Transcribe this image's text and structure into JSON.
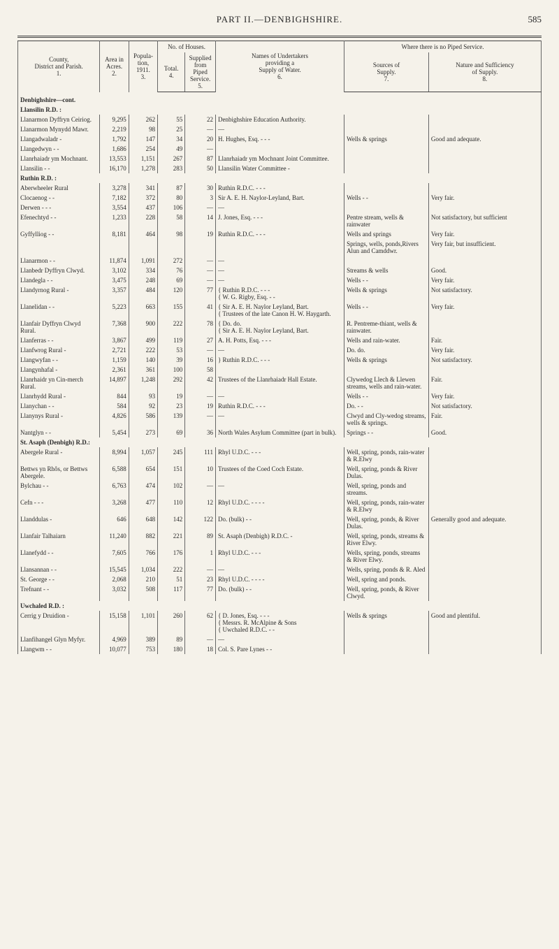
{
  "page": {
    "running_head": "PART II.—DENBIGHSHIRE.",
    "page_number": "585"
  },
  "colors": {
    "bg": "#f5f2ea",
    "rule": "#444444",
    "rule_light": "#888888",
    "text": "#2a2a2a"
  },
  "typography": {
    "family": "Times New Roman",
    "body_pt": 9,
    "header_pt": 13
  },
  "header": {
    "col1": "County,\nDistrict and Parish.\n1.",
    "col2": "Area in\nAcres.\n2.",
    "col3": "Popula-\ntion,\n1911.\n3.",
    "houses_group": "No. of Houses.",
    "col4": "Total.\n4.",
    "col5": "Supplied\nfrom\nPiped\nService.\n5.",
    "col6": "Names of Undertakers\nproviding a\nSupply of Water.\n6.",
    "where_group": "Where there is no Piped Service.",
    "col7": "Sources of\nSupply.\n7.",
    "col8": "Nature and Sufficiency\nof Supply.\n8."
  },
  "sections": [
    {
      "title": "Denbighshire—cont.",
      "groups": [
        {
          "heading": "Llansilin R.D. :",
          "rows": [
            {
              "c": "Llanarmon Dyffryn Ceiriog.",
              "a": "9,295",
              "p": "262",
              "t": "55",
              "s": "22",
              "names": "Denbighshire Education Authority.",
              "src": "",
              "nat": ""
            },
            {
              "c": "Llanarmon Mynydd Mawr.",
              "a": "2,219",
              "p": "98",
              "t": "25",
              "s": "—",
              "names": "—",
              "src": "",
              "nat": ""
            },
            {
              "c": "Llangadwaladr   -",
              "a": "1,792",
              "p": "147",
              "t": "34",
              "s": "20",
              "names": "H. Hughes, Esq.   -   -   -",
              "src": "Wells & springs",
              "nat": "Good and adequate."
            },
            {
              "c": "Llangedwyn -   -",
              "a": "1,686",
              "p": "254",
              "t": "49",
              "s": "—",
              "names": "",
              "src": "",
              "nat": ""
            },
            {
              "c": "Llanrhaiadr ym Mochnant.",
              "a": "13,553",
              "p": "1,151",
              "t": "267",
              "s": "87",
              "names": "Llanrhaiadr ym Mochnant Joint Committee.",
              "src": "",
              "nat": ""
            },
            {
              "c": "Llansilin   -   -",
              "a": "16,170",
              "p": "1,278",
              "t": "283",
              "s": "50",
              "names": "Llansilin Water Committee -",
              "src": "",
              "nat": ""
            }
          ]
        },
        {
          "heading": "Ruthin R.D. :",
          "rows": [
            {
              "c": "Aberwheeler Rural",
              "a": "3,278",
              "p": "341",
              "t": "87",
              "s": "30",
              "names": "Ruthin R.D.C.   -   -   -",
              "src": "",
              "nat": ""
            },
            {
              "c": "Clocaenog   -   -",
              "a": "7,182",
              "p": "372",
              "t": "80",
              "s": "3",
              "names": "Sir A. E. H. Naylor-Leyland, Bart.",
              "src": "Wells   -   -",
              "nat": "Very fair."
            },
            {
              "c": "Derwen -   -   -",
              "a": "3,554",
              "p": "437",
              "t": "106",
              "s": "—",
              "names": "—",
              "src": "",
              "nat": ""
            },
            {
              "c": "Efenechtyd -   -",
              "a": "1,233",
              "p": "228",
              "t": "58",
              "s": "14",
              "names": "J. Jones, Esq.   -   -   -",
              "src": "Pentre stream, wells & rainwater",
              "nat": "Not satisfactory, but sufficient"
            },
            {
              "c": "Gyffylliog   -   -",
              "a": "8,181",
              "p": "464",
              "t": "98",
              "s": "19",
              "names": "Ruthin R.D.C.   -   -   -",
              "src": "Wells and springs",
              "nat": "Very fair."
            },
            {
              "c": "",
              "a": "",
              "p": "",
              "t": "",
              "s": "",
              "names": "",
              "src": "Springs, wells, ponds,Rivers Alun and Camddwr.",
              "nat": "Very fair, but insufficient."
            },
            {
              "c": "Llanarmon   -   -",
              "a": "11,874",
              "p": "1,091",
              "t": "272",
              "s": "—",
              "names": "—",
              "src": "",
              "nat": ""
            },
            {
              "c": "Llanbedr Dyffryn Clwyd.",
              "a": "3,102",
              "p": "334",
              "t": "76",
              "s": "—",
              "names": "—",
              "src": "Streams & wells",
              "nat": "Good."
            },
            {
              "c": "Llandegla   -   -",
              "a": "3,475",
              "p": "248",
              "t": "69",
              "s": "—",
              "names": "—",
              "src": "Wells   -   -",
              "nat": "Very fair."
            },
            {
              "c": "Llandyrnog Rural -",
              "a": "3,357",
              "p": "484",
              "t": "120",
              "s": "77",
              "names": "{ Ruthin R.D.C. -   -   -\n{ W. G. Rigby, Esq. -   -",
              "src": "Wells & springs",
              "nat": "Not satisfactory."
            },
            {
              "c": "Llanelidan   -   -",
              "a": "5,223",
              "p": "663",
              "t": "155",
              "s": "41",
              "names": "{ Sir A. E. H. Naylor Leyland, Bart.\n{ Trustees of the late Canon H. W. Haygarth.",
              "src": "Wells   -   -",
              "nat": "Very fair."
            },
            {
              "c": "Llanfair Dyffryn Clwyd Rural.",
              "a": "7,368",
              "p": "900",
              "t": "222",
              "s": "78",
              "names": "{ Do. do.\n{ Sir A. E. H. Naylor Leyland, Bart.",
              "src": "R. Pentreme-thiant, wells & rainwater.",
              "nat": ""
            },
            {
              "c": "Llanferras   -   -",
              "a": "3,867",
              "p": "499",
              "t": "119",
              "s": "27",
              "names": "A. H. Potts, Esq. -   -   -",
              "src": "Wells and rain-water.",
              "nat": "Fair."
            },
            {
              "c": "Llanfwrog Rural -",
              "a": "2,721",
              "p": "222",
              "t": "53",
              "s": "—",
              "names": "—",
              "src": "Do. do.",
              "nat": "Very fair."
            },
            {
              "c": "Llangwyfan -   -",
              "a": "1,159",
              "p": "140",
              "t": "39",
              "s": "16",
              "names": "} Ruthin R.D.C. -   -   -",
              "src": "Wells & springs",
              "nat": "Not satisfactory."
            },
            {
              "c": "Llangynhafal   -",
              "a": "2,361",
              "p": "361",
              "t": "100",
              "s": "58",
              "names": "",
              "src": "",
              "nat": ""
            },
            {
              "c": "Llanrhaidr yn Cin-merch Rural.",
              "a": "14,897",
              "p": "1,248",
              "t": "292",
              "s": "42",
              "names": "Trustees of the Llanrhaiadr Hall Estate.",
              "src": "Clywedog Llech & Llewen streams, wells and rain-water.",
              "nat": "Fair."
            },
            {
              "c": "Llanrhydd Rural -",
              "a": "844",
              "p": "93",
              "t": "19",
              "s": "—",
              "names": "—",
              "src": "Wells   -   -",
              "nat": "Very fair."
            },
            {
              "c": "Llanychan -   -",
              "a": "584",
              "p": "92",
              "t": "23",
              "s": "19",
              "names": "Ruthin R.D.C.   -   -   -",
              "src": "Do.   -   -",
              "nat": "Not satisfactory."
            },
            {
              "c": "Llanynys Rural  -",
              "a": "4,826",
              "p": "586",
              "t": "139",
              "s": "—",
              "names": "—",
              "src": "Clwyd and Cly-wedog streams, wells & springs.",
              "nat": "Fair."
            },
            {
              "c": "Nantglyn   -   -",
              "a": "5,454",
              "p": "273",
              "t": "69",
              "s": "36",
              "names": "North Wales Asylum Committee (part in bulk).",
              "src": "Springs   -   -",
              "nat": "Good."
            }
          ]
        },
        {
          "heading": "St. Asaph (Denbigh) R.D.:",
          "rows": [
            {
              "c": "Abergele Rural   -",
              "a": "8,994",
              "p": "1,057",
              "t": "245",
              "s": "111",
              "names": "Rhyl U.D.C.   -   -   -",
              "src": "Well, spring, ponds, rain-water & R.Elwy",
              "nat": ""
            },
            {
              "c": "Bettws yn Rhôs, or Bettws Abergele.",
              "a": "6,588",
              "p": "654",
              "t": "151",
              "s": "10",
              "names": "Trustees of the Coed Coch Estate.",
              "src": "Well, spring, ponds & River Dulas.",
              "nat": ""
            },
            {
              "c": "Bylchau   -   -",
              "a": "6,763",
              "p": "474",
              "t": "102",
              "s": "—",
              "names": "—",
              "src": "Well, spring, ponds and streams.",
              "nat": ""
            },
            {
              "c": "Cefn   -   -   -",
              "a": "3,268",
              "p": "477",
              "t": "110",
              "s": "12",
              "names": "Rhyl U.D.C. -   -   -   -",
              "src": "Well, spring, ponds, rain-water & R.Elwy",
              "nat": ""
            },
            {
              "c": "Llanddulas   -",
              "a": "646",
              "p": "648",
              "t": "142",
              "s": "122",
              "names": "Do. (bulk)   -   -",
              "src": "Well, spring, ponds, & River Dulas.",
              "nat": "Generally good and adequate."
            },
            {
              "c": "Llanfair Talhaiarn",
              "a": "11,240",
              "p": "882",
              "t": "221",
              "s": "89",
              "names": "St. Asaph (Denbigh) R.D.C. -",
              "src": "Well, spring, ponds, streams & River Elwy.",
              "nat": ""
            },
            {
              "c": "Llanefydd   -   -",
              "a": "7,605",
              "p": "766",
              "t": "176",
              "s": "1",
              "names": "Rhyl U.D.C.   -   -   -",
              "src": "Wells, spring, ponds, streams & River Elwy.",
              "nat": ""
            },
            {
              "c": "Llansannan   -   -",
              "a": "15,545",
              "p": "1,034",
              "t": "222",
              "s": "—",
              "names": "—",
              "src": "Wells, spring, ponds & R. Aled",
              "nat": ""
            },
            {
              "c": "St. George   -   -",
              "a": "2,068",
              "p": "210",
              "t": "51",
              "s": "23",
              "names": "Rhyl U.D.C. -   -   -   -",
              "src": "Well, spring and ponds.",
              "nat": ""
            },
            {
              "c": "Trefnant   -   -",
              "a": "3,032",
              "p": "508",
              "t": "117",
              "s": "77",
              "names": "Do. (bulk)   -   -",
              "src": "Well, spring, ponds, & River Clwyd.",
              "nat": ""
            }
          ]
        },
        {
          "heading": "Uwchaled R.D. :",
          "rows": [
            {
              "c": "Cerrig y Druidion -",
              "a": "15,158",
              "p": "1,101",
              "t": "260",
              "s": "62",
              "names": "{ D. Jones, Esq. -   -   -\n{ Messrs. R. McAlpine & Sons\n{ Uwchaled R.D.C.   -   -",
              "src": "Wells & springs",
              "nat": "Good and plentiful."
            },
            {
              "c": "Llanfihangel Glyn Myfyr.",
              "a": "4,969",
              "p": "389",
              "t": "89",
              "s": "—",
              "names": "—",
              "src": "",
              "nat": ""
            },
            {
              "c": "Llangwm   -   -",
              "a": "10,077",
              "p": "753",
              "t": "180",
              "s": "18",
              "names": "Col. S. Pare Lynes   -   -",
              "src": "",
              "nat": ""
            }
          ]
        }
      ]
    }
  ]
}
